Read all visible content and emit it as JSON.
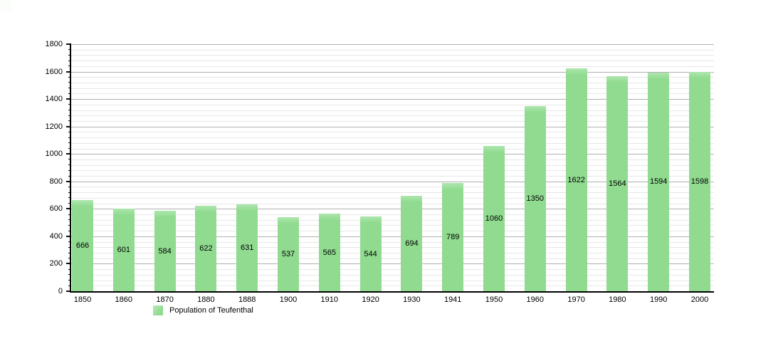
{
  "colors": {
    "bar": "#90db90",
    "bar_highlight": "#aee6ae",
    "major_grid": "#b0b0b0",
    "minor_grid": "#e7e7e7",
    "axis": "#000000",
    "text": "#000000",
    "background": "#ffffff"
  },
  "legend": {
    "label": "Population of Teufenthal",
    "swatch_color": "#90db90"
  },
  "chart_data": {
    "type": "bar",
    "title": "",
    "xlabel": "",
    "ylabel": "",
    "categories": [
      "1850",
      "1860",
      "1870",
      "1880",
      "1888",
      "1900",
      "1910",
      "1920",
      "1930",
      "1941",
      "1950",
      "1960",
      "1970",
      "1980",
      "1990",
      "2000"
    ],
    "values": [
      666,
      601,
      584,
      622,
      631,
      537,
      565,
      544,
      694,
      789,
      1060,
      1350,
      1622,
      1564,
      1594,
      1598
    ],
    "series_name": "Population of Teufenthal",
    "ylim": [
      0,
      1800
    ],
    "ytick_interval": 200,
    "yminor_interval": 40,
    "ytick_labels": [
      "0",
      "200",
      "400",
      "600",
      "800",
      "1000",
      "1200",
      "1400",
      "1600",
      "1800"
    ],
    "grid": true,
    "bar_value_labels_inside": true,
    "legend_position": "bottom-left"
  }
}
